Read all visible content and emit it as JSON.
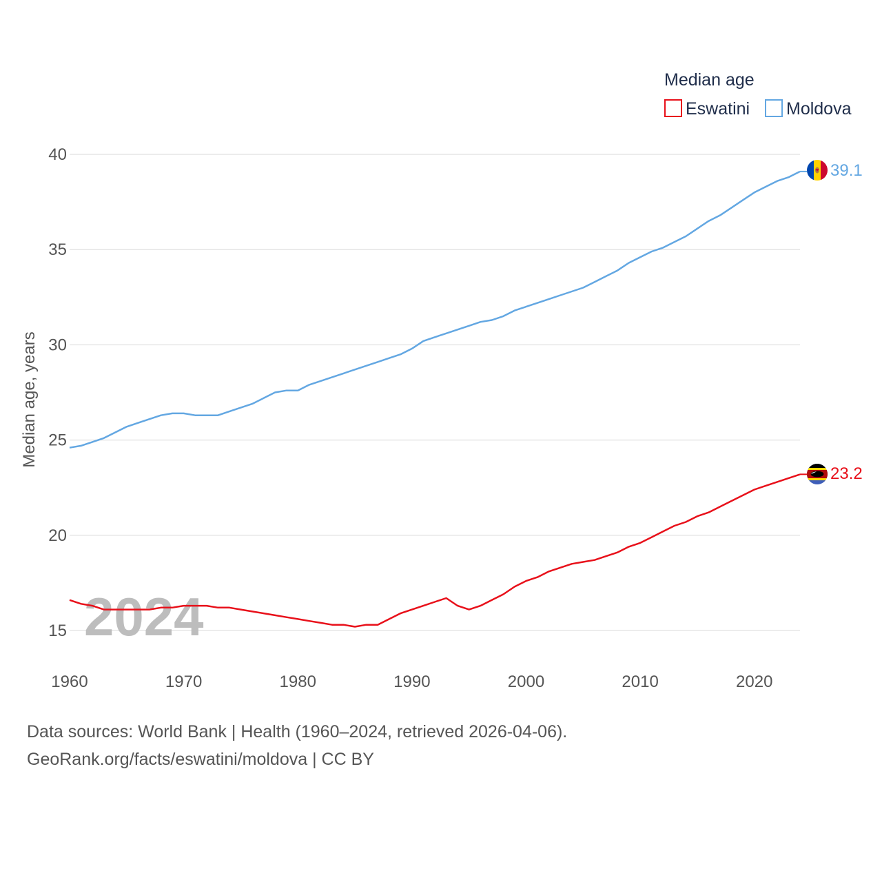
{
  "chart_data": {
    "type": "line",
    "title": "",
    "ylabel": "Median age, years",
    "xlabel": "",
    "xlim": [
      1960,
      2024
    ],
    "ylim": [
      13.5,
      41
    ],
    "x_ticks": [
      1960,
      1970,
      1980,
      1990,
      2000,
      2010,
      2020
    ],
    "y_ticks": [
      15,
      20,
      25,
      30,
      35,
      40
    ],
    "grid": true,
    "current_year": "2024",
    "legend": {
      "title": "Median age",
      "placement": "top-right"
    },
    "series": [
      {
        "name": "Eswatini",
        "color": "#e8101a",
        "flag": "eswatini-flag-icon",
        "end_label": "23.2",
        "x": [
          1960,
          1961,
          1962,
          1963,
          1964,
          1965,
          1966,
          1967,
          1968,
          1969,
          1970,
          1971,
          1972,
          1973,
          1974,
          1975,
          1976,
          1977,
          1978,
          1979,
          1980,
          1981,
          1982,
          1983,
          1984,
          1985,
          1986,
          1987,
          1988,
          1989,
          1990,
          1991,
          1992,
          1993,
          1994,
          1995,
          1996,
          1997,
          1998,
          1999,
          2000,
          2001,
          2002,
          2003,
          2004,
          2005,
          2006,
          2007,
          2008,
          2009,
          2010,
          2011,
          2012,
          2013,
          2014,
          2015,
          2016,
          2017,
          2018,
          2019,
          2020,
          2021,
          2022,
          2023,
          2024
        ],
        "values": [
          16.6,
          16.4,
          16.3,
          16.1,
          16.1,
          16.1,
          16.1,
          16.1,
          16.2,
          16.2,
          16.3,
          16.3,
          16.3,
          16.2,
          16.2,
          16.1,
          16.0,
          15.9,
          15.8,
          15.7,
          15.6,
          15.5,
          15.4,
          15.3,
          15.3,
          15.2,
          15.3,
          15.3,
          15.6,
          15.9,
          16.1,
          16.3,
          16.5,
          16.7,
          16.3,
          16.1,
          16.3,
          16.6,
          16.9,
          17.3,
          17.6,
          17.8,
          18.1,
          18.3,
          18.5,
          18.6,
          18.7,
          18.9,
          19.1,
          19.4,
          19.6,
          19.9,
          20.2,
          20.5,
          20.7,
          21.0,
          21.2,
          21.5,
          21.8,
          22.1,
          22.4,
          22.6,
          22.8,
          23.0,
          23.2
        ]
      },
      {
        "name": "Moldova",
        "color": "#63a7e2",
        "flag": "moldova-flag-icon",
        "end_label": "39.1",
        "x": [
          1960,
          1961,
          1962,
          1963,
          1964,
          1965,
          1966,
          1967,
          1968,
          1969,
          1970,
          1971,
          1972,
          1973,
          1974,
          1975,
          1976,
          1977,
          1978,
          1979,
          1980,
          1981,
          1982,
          1983,
          1984,
          1985,
          1986,
          1987,
          1988,
          1989,
          1990,
          1991,
          1992,
          1993,
          1994,
          1995,
          1996,
          1997,
          1998,
          1999,
          2000,
          2001,
          2002,
          2003,
          2004,
          2005,
          2006,
          2007,
          2008,
          2009,
          2010,
          2011,
          2012,
          2013,
          2014,
          2015,
          2016,
          2017,
          2018,
          2019,
          2020,
          2021,
          2022,
          2023,
          2024
        ],
        "values": [
          24.6,
          24.7,
          24.9,
          25.1,
          25.4,
          25.7,
          25.9,
          26.1,
          26.3,
          26.4,
          26.4,
          26.3,
          26.3,
          26.3,
          26.5,
          26.7,
          26.9,
          27.2,
          27.5,
          27.6,
          27.6,
          27.9,
          28.1,
          28.3,
          28.5,
          28.7,
          28.9,
          29.1,
          29.3,
          29.5,
          29.8,
          30.2,
          30.4,
          30.6,
          30.8,
          31.0,
          31.2,
          31.3,
          31.5,
          31.8,
          32.0,
          32.2,
          32.4,
          32.6,
          32.8,
          33.0,
          33.3,
          33.6,
          33.9,
          34.3,
          34.6,
          34.9,
          35.1,
          35.4,
          35.7,
          36.1,
          36.5,
          36.8,
          37.2,
          37.6,
          38.0,
          38.3,
          38.6,
          38.8,
          39.1
        ]
      }
    ]
  },
  "footer": {
    "line1": "Data sources: World Bank | Health (1960–2024, retrieved 2026-04-06).",
    "line2": "GeoRank.org/facts/eswatini/moldova | CC BY"
  }
}
